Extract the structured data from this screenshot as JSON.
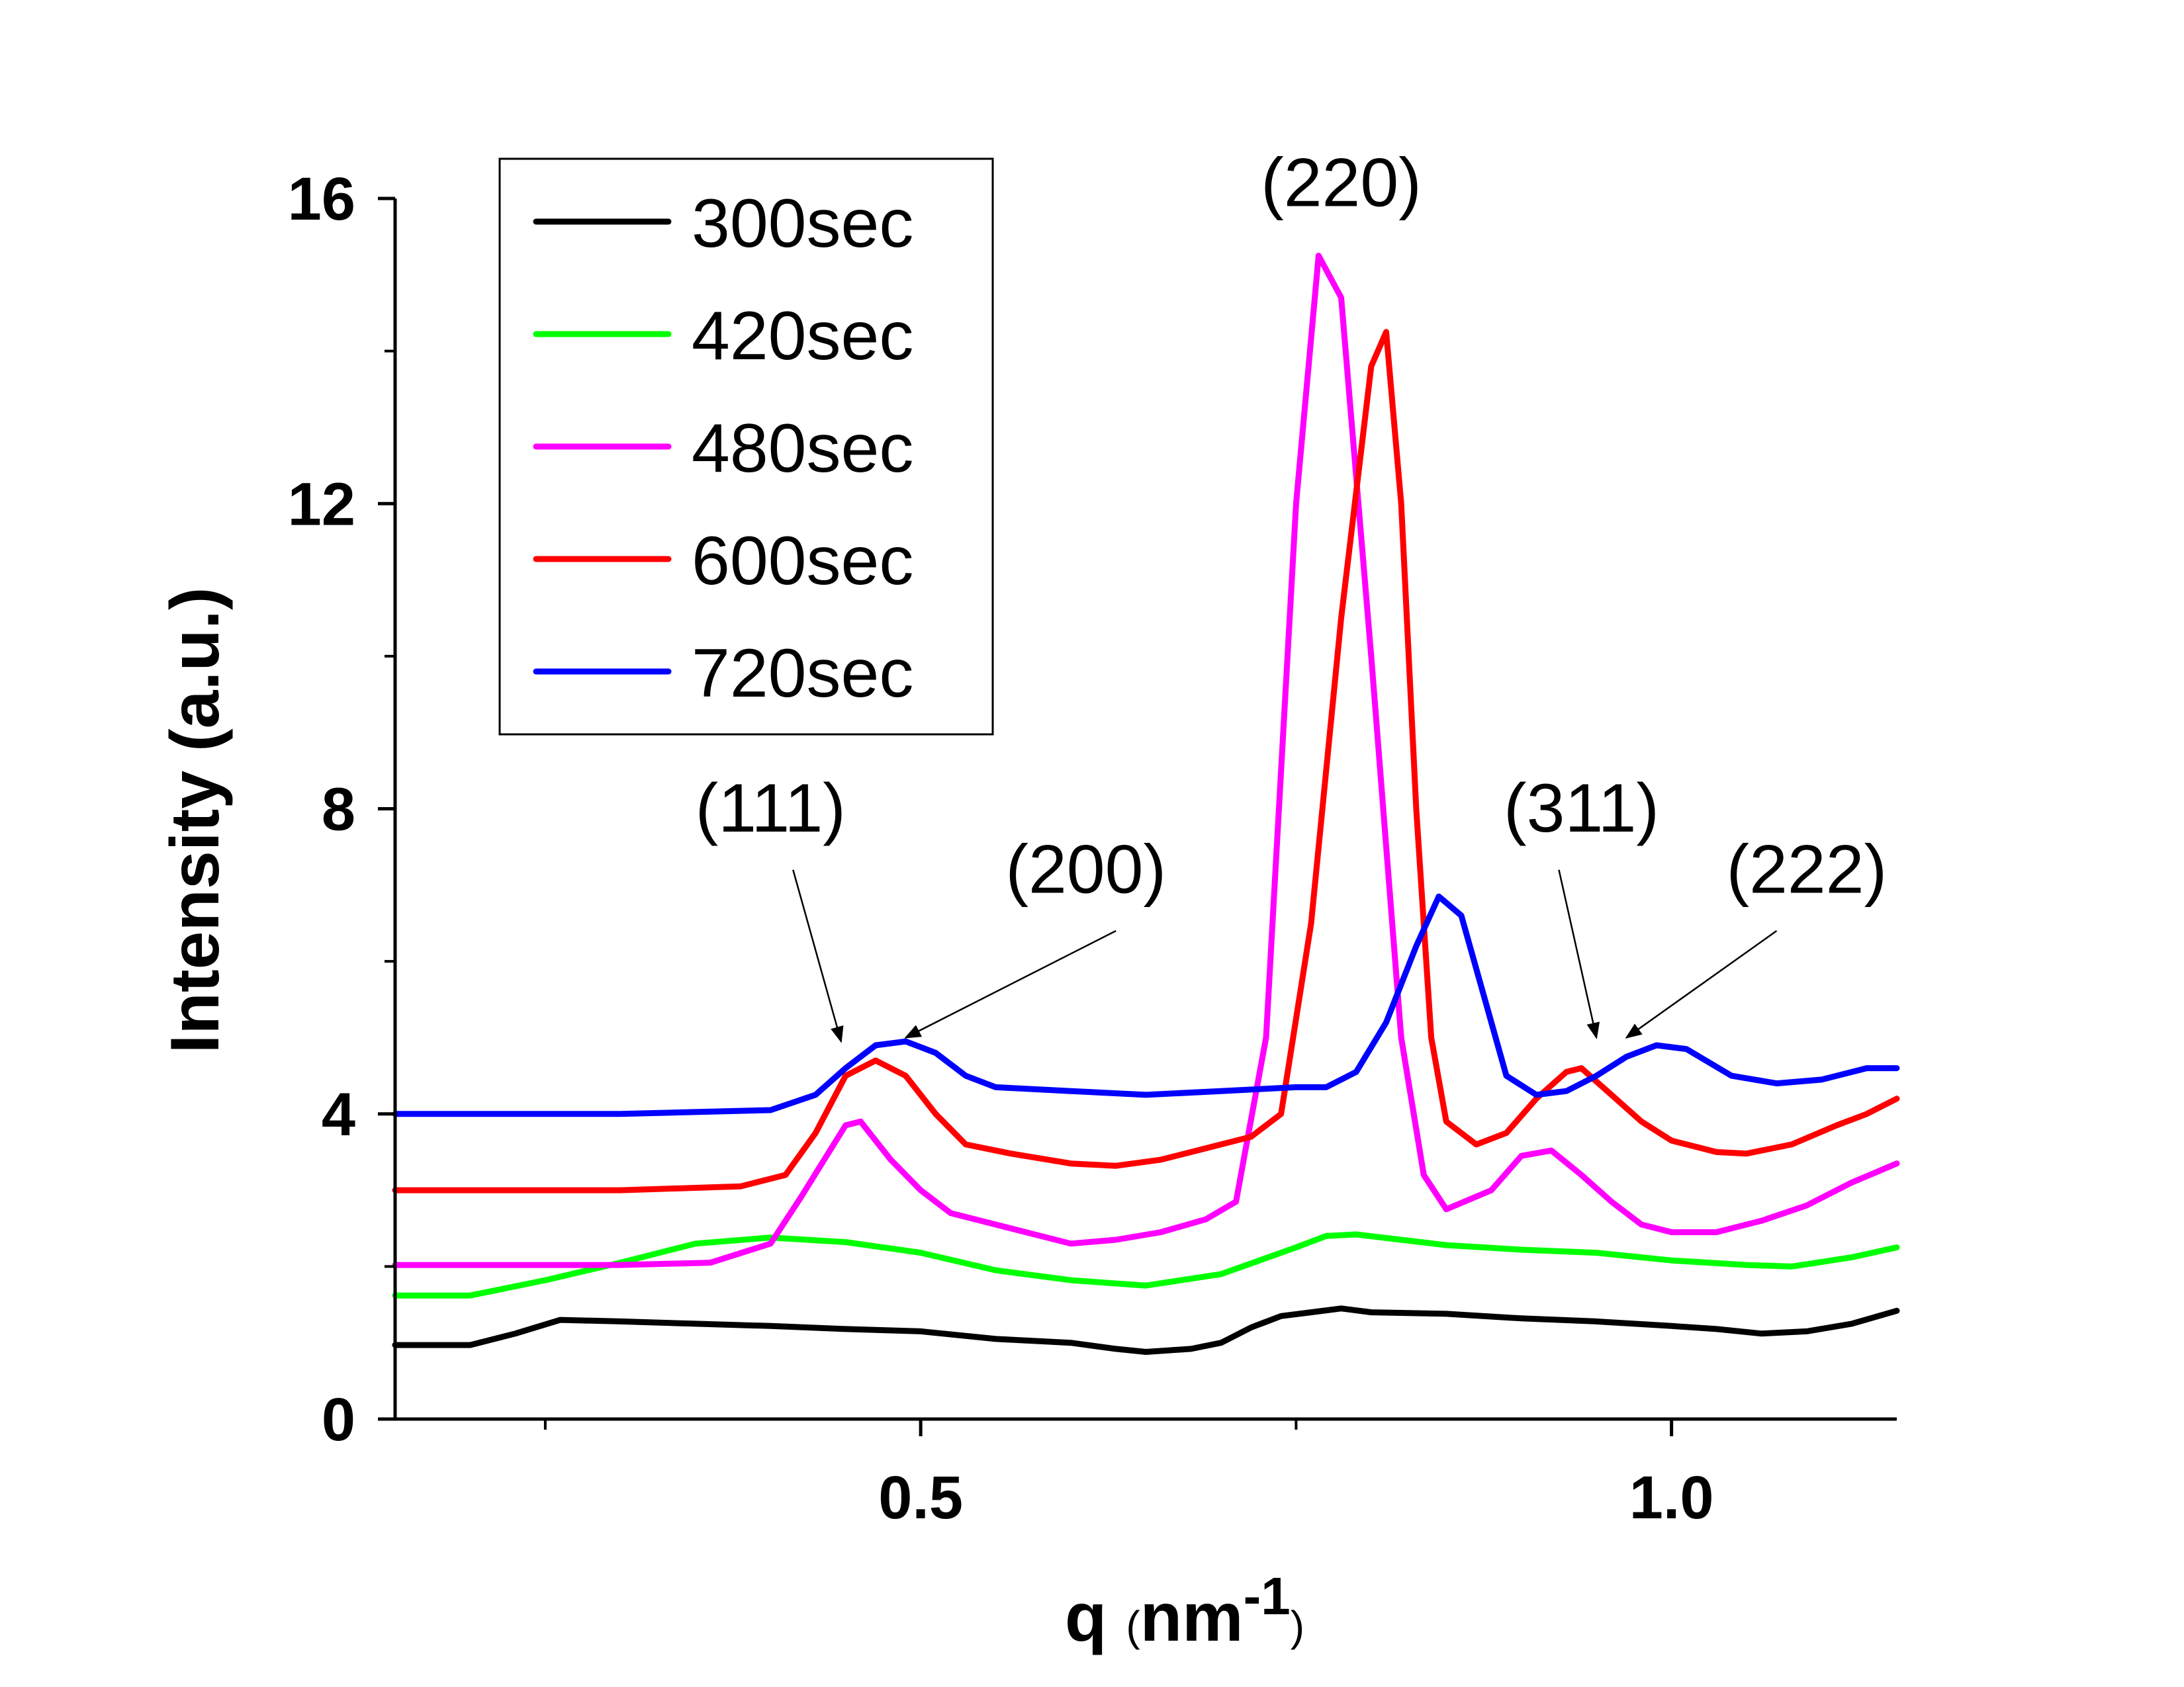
{
  "chart_data": {
    "type": "line",
    "xlabel": "q",
    "xlabel_unit_pre": "(",
    "xlabel_unit": "nm",
    "xlabel_unit_exp": "-1",
    "xlabel_unit_post": ")",
    "ylabel": "Intensity (a.u.)",
    "xlim": [
      0.15,
      1.15
    ],
    "ylim": [
      0,
      16
    ],
    "xticks": [
      {
        "value": 0.5,
        "label": "0.5"
      },
      {
        "value": 1.0,
        "label": "1.0"
      }
    ],
    "xminor": [
      0.25,
      0.75
    ],
    "yticks": [
      {
        "value": 0,
        "label": "0"
      },
      {
        "value": 4,
        "label": "4"
      },
      {
        "value": 8,
        "label": "8"
      },
      {
        "value": 12,
        "label": "12"
      },
      {
        "value": 16,
        "label": "16"
      }
    ],
    "yminor": [
      2,
      6,
      10,
      14
    ],
    "grid": false,
    "legend_position": "top-left",
    "series": [
      {
        "name": "300sec",
        "color": "#000000",
        "points": [
          [
            0.15,
            0.97
          ],
          [
            0.2,
            0.97
          ],
          [
            0.23,
            1.12
          ],
          [
            0.26,
            1.3
          ],
          [
            0.3,
            1.28
          ],
          [
            0.35,
            1.25
          ],
          [
            0.4,
            1.22
          ],
          [
            0.45,
            1.18
          ],
          [
            0.5,
            1.15
          ],
          [
            0.55,
            1.05
          ],
          [
            0.6,
            1.0
          ],
          [
            0.63,
            0.92
          ],
          [
            0.65,
            0.88
          ],
          [
            0.68,
            0.92
          ],
          [
            0.7,
            1.0
          ],
          [
            0.72,
            1.2
          ],
          [
            0.74,
            1.35
          ],
          [
            0.76,
            1.4
          ],
          [
            0.78,
            1.45
          ],
          [
            0.8,
            1.4
          ],
          [
            0.85,
            1.38
          ],
          [
            0.9,
            1.32
          ],
          [
            0.95,
            1.28
          ],
          [
            1.0,
            1.22
          ],
          [
            1.03,
            1.18
          ],
          [
            1.06,
            1.12
          ],
          [
            1.09,
            1.15
          ],
          [
            1.12,
            1.25
          ],
          [
            1.15,
            1.42
          ]
        ]
      },
      {
        "name": "420sec",
        "color": "#00ff00",
        "points": [
          [
            0.15,
            1.62
          ],
          [
            0.2,
            1.62
          ],
          [
            0.25,
            1.82
          ],
          [
            0.3,
            2.05
          ],
          [
            0.35,
            2.3
          ],
          [
            0.4,
            2.38
          ],
          [
            0.45,
            2.32
          ],
          [
            0.5,
            2.18
          ],
          [
            0.55,
            1.95
          ],
          [
            0.6,
            1.82
          ],
          [
            0.65,
            1.75
          ],
          [
            0.7,
            1.9
          ],
          [
            0.75,
            2.25
          ],
          [
            0.77,
            2.4
          ],
          [
            0.79,
            2.42
          ],
          [
            0.82,
            2.35
          ],
          [
            0.85,
            2.28
          ],
          [
            0.9,
            2.22
          ],
          [
            0.95,
            2.18
          ],
          [
            1.0,
            2.08
          ],
          [
            1.05,
            2.02
          ],
          [
            1.08,
            2.0
          ],
          [
            1.12,
            2.12
          ],
          [
            1.15,
            2.25
          ]
        ]
      },
      {
        "name": "480sec",
        "color": "#ff00ff",
        "points": [
          [
            0.15,
            2.02
          ],
          [
            0.3,
            2.02
          ],
          [
            0.36,
            2.05
          ],
          [
            0.4,
            2.3
          ],
          [
            0.42,
            2.9
          ],
          [
            0.45,
            3.85
          ],
          [
            0.46,
            3.9
          ],
          [
            0.48,
            3.4
          ],
          [
            0.5,
            3.0
          ],
          [
            0.52,
            2.7
          ],
          [
            0.55,
            2.55
          ],
          [
            0.58,
            2.4
          ],
          [
            0.6,
            2.3
          ],
          [
            0.63,
            2.35
          ],
          [
            0.66,
            2.45
          ],
          [
            0.69,
            2.62
          ],
          [
            0.71,
            2.85
          ],
          [
            0.73,
            5.0
          ],
          [
            0.75,
            12.0
          ],
          [
            0.765,
            15.25
          ],
          [
            0.78,
            14.7
          ],
          [
            0.8,
            10.0
          ],
          [
            0.82,
            5.0
          ],
          [
            0.835,
            3.2
          ],
          [
            0.85,
            2.75
          ],
          [
            0.88,
            3.0
          ],
          [
            0.9,
            3.45
          ],
          [
            0.92,
            3.52
          ],
          [
            0.94,
            3.2
          ],
          [
            0.96,
            2.85
          ],
          [
            0.98,
            2.55
          ],
          [
            1.0,
            2.45
          ],
          [
            1.03,
            2.45
          ],
          [
            1.06,
            2.6
          ],
          [
            1.09,
            2.8
          ],
          [
            1.12,
            3.1
          ],
          [
            1.15,
            3.35
          ]
        ]
      },
      {
        "name": "600sec",
        "color": "#ff0000",
        "points": [
          [
            0.15,
            3.0
          ],
          [
            0.3,
            3.0
          ],
          [
            0.38,
            3.05
          ],
          [
            0.41,
            3.2
          ],
          [
            0.43,
            3.75
          ],
          [
            0.45,
            4.5
          ],
          [
            0.47,
            4.7
          ],
          [
            0.49,
            4.5
          ],
          [
            0.51,
            4.0
          ],
          [
            0.53,
            3.6
          ],
          [
            0.56,
            3.48
          ],
          [
            0.6,
            3.35
          ],
          [
            0.63,
            3.32
          ],
          [
            0.66,
            3.4
          ],
          [
            0.69,
            3.55
          ],
          [
            0.72,
            3.7
          ],
          [
            0.74,
            4.0
          ],
          [
            0.76,
            6.5
          ],
          [
            0.78,
            10.5
          ],
          [
            0.8,
            13.8
          ],
          [
            0.81,
            14.25
          ],
          [
            0.82,
            12.0
          ],
          [
            0.83,
            8.0
          ],
          [
            0.84,
            5.0
          ],
          [
            0.85,
            3.9
          ],
          [
            0.87,
            3.6
          ],
          [
            0.89,
            3.75
          ],
          [
            0.91,
            4.2
          ],
          [
            0.93,
            4.55
          ],
          [
            0.94,
            4.6
          ],
          [
            0.96,
            4.25
          ],
          [
            0.98,
            3.9
          ],
          [
            1.0,
            3.65
          ],
          [
            1.03,
            3.5
          ],
          [
            1.05,
            3.48
          ],
          [
            1.08,
            3.6
          ],
          [
            1.11,
            3.85
          ],
          [
            1.13,
            4.0
          ],
          [
            1.15,
            4.2
          ]
        ]
      },
      {
        "name": "720sec",
        "color": "#0000ff",
        "points": [
          [
            0.15,
            4.0
          ],
          [
            0.3,
            4.0
          ],
          [
            0.4,
            4.05
          ],
          [
            0.43,
            4.25
          ],
          [
            0.45,
            4.6
          ],
          [
            0.47,
            4.9
          ],
          [
            0.49,
            4.95
          ],
          [
            0.51,
            4.8
          ],
          [
            0.53,
            4.5
          ],
          [
            0.55,
            4.35
          ],
          [
            0.6,
            4.3
          ],
          [
            0.65,
            4.25
          ],
          [
            0.7,
            4.3
          ],
          [
            0.75,
            4.35
          ],
          [
            0.77,
            4.35
          ],
          [
            0.79,
            4.55
          ],
          [
            0.81,
            5.2
          ],
          [
            0.83,
            6.2
          ],
          [
            0.845,
            6.85
          ],
          [
            0.86,
            6.6
          ],
          [
            0.88,
            5.2
          ],
          [
            0.89,
            4.5
          ],
          [
            0.91,
            4.25
          ],
          [
            0.93,
            4.3
          ],
          [
            0.95,
            4.5
          ],
          [
            0.97,
            4.75
          ],
          [
            0.99,
            4.9
          ],
          [
            1.01,
            4.85
          ],
          [
            1.04,
            4.5
          ],
          [
            1.07,
            4.4
          ],
          [
            1.1,
            4.45
          ],
          [
            1.13,
            4.6
          ],
          [
            1.15,
            4.6
          ]
        ]
      }
    ],
    "annotations": [
      {
        "text": "(111)",
        "label_q": 0.4,
        "label_i": 7.7,
        "arrow_from_q": 0.415,
        "arrow_from_i": 7.2,
        "arrow_to_q": 0.447,
        "arrow_to_i": 4.95
      },
      {
        "text": "(200)",
        "label_q": 0.61,
        "label_i": 6.9,
        "arrow_from_q": 0.63,
        "arrow_from_i": 6.4,
        "arrow_to_q": 0.49,
        "arrow_to_i": 5.0
      },
      {
        "text": "(220)",
        "label_q": 0.78,
        "label_i": 15.9,
        "arrow_from_q": null,
        "arrow_from_i": null,
        "arrow_to_q": null,
        "arrow_to_i": null
      },
      {
        "text": "(311)",
        "label_q": 0.94,
        "label_i": 7.7,
        "arrow_from_q": 0.925,
        "arrow_from_i": 7.2,
        "arrow_to_q": 0.95,
        "arrow_to_i": 5.0
      },
      {
        "text": "(222)",
        "label_q": 1.09,
        "label_i": 6.9,
        "arrow_from_q": 1.07,
        "arrow_from_i": 6.4,
        "arrow_to_q": 0.97,
        "arrow_to_i": 5.0
      }
    ]
  }
}
